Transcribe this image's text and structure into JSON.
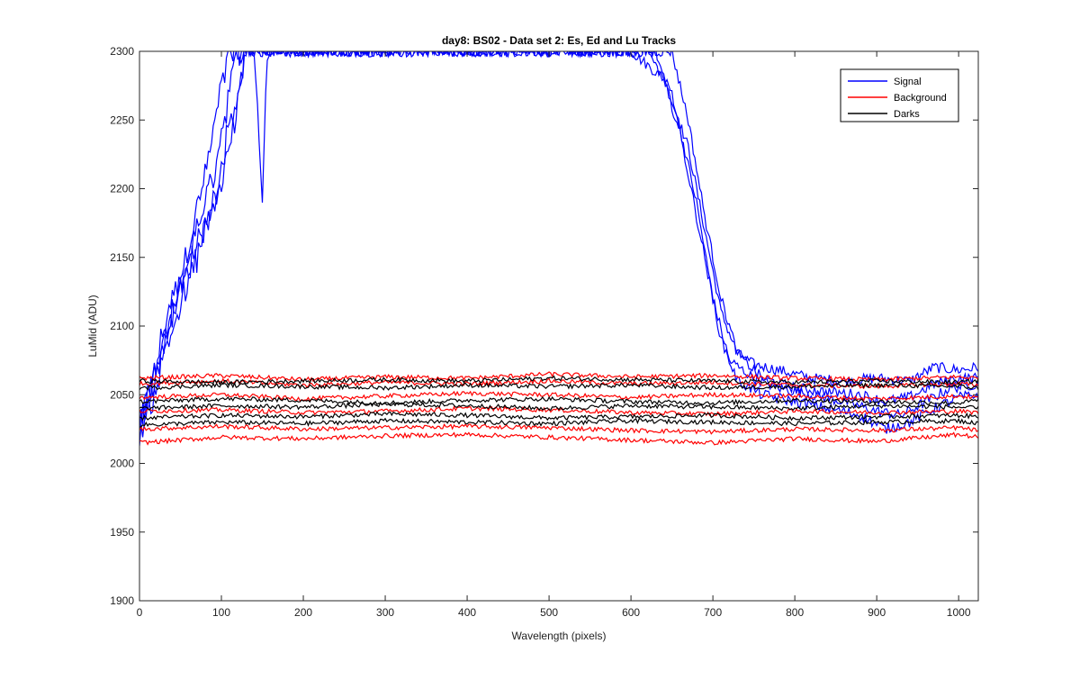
{
  "chart_data": {
    "type": "line",
    "title": "day8: BS02 - Data set 2: Es, Ed and Lu Tracks",
    "xlabel": "Wavelength (pixels)",
    "ylabel": "LuMid (ADU)",
    "xlim": [
      0,
      1024
    ],
    "ylim": [
      1900,
      2300
    ],
    "xticks": [
      0,
      100,
      200,
      300,
      400,
      500,
      600,
      700,
      800,
      900,
      1000
    ],
    "yticks": [
      1900,
      1950,
      2000,
      2050,
      2100,
      2150,
      2200,
      2250,
      2300
    ],
    "grid": false,
    "legend_position": "top-right",
    "legend": [
      {
        "label": "Signal",
        "color": "#0000ff"
      },
      {
        "label": "Background",
        "color": "#ff0000"
      },
      {
        "label": "Darks",
        "color": "#000000"
      }
    ],
    "series": [
      {
        "group": "Signal",
        "color": "#0000ff",
        "points": [
          [
            0,
            2027
          ],
          [
            10,
            2040
          ],
          [
            20,
            2070
          ],
          [
            30,
            2100
          ],
          [
            40,
            2120
          ],
          [
            50,
            2135
          ],
          [
            60,
            2160
          ],
          [
            70,
            2185
          ],
          [
            80,
            2210
          ],
          [
            90,
            2240
          ],
          [
            100,
            2275
          ],
          [
            110,
            2300
          ],
          [
            600,
            2300
          ],
          [
            640,
            2280
          ],
          [
            670,
            2230
          ],
          [
            690,
            2170
          ],
          [
            710,
            2110
          ],
          [
            730,
            2080
          ],
          [
            750,
            2072
          ],
          [
            780,
            2068
          ],
          [
            820,
            2062
          ],
          [
            860,
            2060
          ],
          [
            900,
            2062
          ],
          [
            940,
            2060
          ],
          [
            970,
            2070
          ],
          [
            1000,
            2068
          ],
          [
            1024,
            2070
          ]
        ]
      },
      {
        "group": "Signal",
        "color": "#0000ff",
        "points": [
          [
            0,
            2030
          ],
          [
            10,
            2045
          ],
          [
            20,
            2060
          ],
          [
            30,
            2085
          ],
          [
            40,
            2105
          ],
          [
            50,
            2130
          ],
          [
            60,
            2150
          ],
          [
            70,
            2170
          ],
          [
            80,
            2190
          ],
          [
            90,
            2210
          ],
          [
            100,
            2240
          ],
          [
            110,
            2270
          ],
          [
            120,
            2300
          ],
          [
            140,
            2300
          ],
          [
            145,
            2250
          ],
          [
            150,
            2190
          ],
          [
            155,
            2290
          ],
          [
            160,
            2300
          ],
          [
            620,
            2300
          ],
          [
            650,
            2270
          ],
          [
            680,
            2190
          ],
          [
            700,
            2120
          ],
          [
            720,
            2075
          ],
          [
            750,
            2062
          ],
          [
            780,
            2055
          ],
          [
            820,
            2050
          ],
          [
            860,
            2045
          ],
          [
            900,
            2038
          ],
          [
            930,
            2035
          ],
          [
            960,
            2045
          ],
          [
            990,
            2055
          ],
          [
            1024,
            2058
          ]
        ]
      },
      {
        "group": "Signal",
        "color": "#0000ff",
        "points": [
          [
            0,
            2025
          ],
          [
            10,
            2050
          ],
          [
            20,
            2070
          ],
          [
            30,
            2090
          ],
          [
            40,
            2110
          ],
          [
            50,
            2125
          ],
          [
            60,
            2140
          ],
          [
            70,
            2160
          ],
          [
            80,
            2175
          ],
          [
            90,
            2190
          ],
          [
            100,
            2215
          ],
          [
            110,
            2250
          ],
          [
            120,
            2270
          ],
          [
            130,
            2300
          ],
          [
            650,
            2300
          ],
          [
            670,
            2250
          ],
          [
            690,
            2180
          ],
          [
            710,
            2120
          ],
          [
            730,
            2080
          ],
          [
            760,
            2062
          ],
          [
            800,
            2055
          ],
          [
            840,
            2052
          ],
          [
            880,
            2050
          ],
          [
            910,
            2045
          ],
          [
            940,
            2048
          ],
          [
            970,
            2058
          ],
          [
            1000,
            2062
          ],
          [
            1024,
            2062
          ]
        ]
      },
      {
        "group": "Signal",
        "color": "#0000ff",
        "points": [
          [
            0,
            2022
          ],
          [
            10,
            2035
          ],
          [
            20,
            2055
          ],
          [
            30,
            2080
          ],
          [
            40,
            2100
          ],
          [
            50,
            2115
          ],
          [
            60,
            2130
          ],
          [
            70,
            2150
          ],
          [
            80,
            2170
          ],
          [
            90,
            2185
          ],
          [
            100,
            2205
          ],
          [
            110,
            2230
          ],
          [
            120,
            2260
          ],
          [
            130,
            2300
          ],
          [
            630,
            2300
          ],
          [
            660,
            2240
          ],
          [
            690,
            2150
          ],
          [
            710,
            2090
          ],
          [
            730,
            2060
          ],
          [
            760,
            2050
          ],
          [
            800,
            2045
          ],
          [
            840,
            2040
          ],
          [
            880,
            2035
          ],
          [
            910,
            2025
          ],
          [
            940,
            2030
          ],
          [
            970,
            2040
          ],
          [
            1000,
            2048
          ],
          [
            1024,
            2050
          ]
        ]
      },
      {
        "group": "Background",
        "color": "#ff0000",
        "points": [
          [
            0,
            2062
          ],
          [
            100,
            2064
          ],
          [
            200,
            2061
          ],
          [
            300,
            2063
          ],
          [
            400,
            2062
          ],
          [
            500,
            2065
          ],
          [
            600,
            2063
          ],
          [
            700,
            2064
          ],
          [
            800,
            2062
          ],
          [
            900,
            2061
          ],
          [
            1000,
            2063
          ],
          [
            1024,
            2062
          ]
        ]
      },
      {
        "group": "Background",
        "color": "#ff0000",
        "points": [
          [
            0,
            2058
          ],
          [
            100,
            2060
          ],
          [
            200,
            2057
          ],
          [
            300,
            2059
          ],
          [
            400,
            2058
          ],
          [
            500,
            2060
          ],
          [
            600,
            2058
          ],
          [
            700,
            2059
          ],
          [
            800,
            2057
          ],
          [
            900,
            2056
          ],
          [
            1000,
            2058
          ],
          [
            1024,
            2057
          ]
        ]
      },
      {
        "group": "Background",
        "color": "#ff0000",
        "points": [
          [
            0,
            2048
          ],
          [
            100,
            2050
          ],
          [
            200,
            2047
          ],
          [
            300,
            2049
          ],
          [
            400,
            2051
          ],
          [
            500,
            2050
          ],
          [
            600,
            2048
          ],
          [
            700,
            2050
          ],
          [
            800,
            2049
          ],
          [
            900,
            2047
          ],
          [
            1000,
            2049
          ],
          [
            1024,
            2048
          ]
        ]
      },
      {
        "group": "Background",
        "color": "#ff0000",
        "points": [
          [
            0,
            2038
          ],
          [
            100,
            2039
          ],
          [
            200,
            2037
          ],
          [
            300,
            2038
          ],
          [
            400,
            2040
          ],
          [
            500,
            2039
          ],
          [
            600,
            2037
          ],
          [
            700,
            2036
          ],
          [
            800,
            2038
          ],
          [
            900,
            2037
          ],
          [
            1000,
            2038
          ],
          [
            1024,
            2037
          ]
        ]
      },
      {
        "group": "Background",
        "color": "#ff0000",
        "points": [
          [
            0,
            2025
          ],
          [
            100,
            2027
          ],
          [
            200,
            2025
          ],
          [
            300,
            2026
          ],
          [
            400,
            2027
          ],
          [
            500,
            2026
          ],
          [
            600,
            2024
          ],
          [
            700,
            2023
          ],
          [
            800,
            2025
          ],
          [
            900,
            2024
          ],
          [
            1000,
            2026
          ],
          [
            1024,
            2024
          ]
        ]
      },
      {
        "group": "Background",
        "color": "#ff0000",
        "points": [
          [
            0,
            2015
          ],
          [
            100,
            2019
          ],
          [
            200,
            2018
          ],
          [
            300,
            2020
          ],
          [
            400,
            2021
          ],
          [
            500,
            2019
          ],
          [
            600,
            2017
          ],
          [
            700,
            2015
          ],
          [
            800,
            2018
          ],
          [
            900,
            2016
          ],
          [
            1000,
            2021
          ],
          [
            1024,
            2019
          ]
        ]
      },
      {
        "group": "Darks",
        "color": "#000000",
        "points": [
          [
            0,
            2060
          ],
          [
            100,
            2059
          ],
          [
            200,
            2060
          ],
          [
            300,
            2061
          ],
          [
            400,
            2060
          ],
          [
            500,
            2062
          ],
          [
            600,
            2061
          ],
          [
            700,
            2060
          ],
          [
            800,
            2059
          ],
          [
            900,
            2060
          ],
          [
            1000,
            2059
          ],
          [
            1024,
            2060
          ]
        ]
      },
      {
        "group": "Darks",
        "color": "#000000",
        "points": [
          [
            0,
            2055
          ],
          [
            100,
            2057
          ],
          [
            200,
            2056
          ],
          [
            300,
            2055
          ],
          [
            400,
            2057
          ],
          [
            500,
            2056
          ],
          [
            600,
            2057
          ],
          [
            700,
            2055
          ],
          [
            800,
            2056
          ],
          [
            900,
            2057
          ],
          [
            1000,
            2056
          ],
          [
            1024,
            2055
          ]
        ]
      },
      {
        "group": "Darks",
        "color": "#000000",
        "points": [
          [
            0,
            2045
          ],
          [
            100,
            2047
          ],
          [
            200,
            2046
          ],
          [
            300,
            2044
          ],
          [
            400,
            2046
          ],
          [
            500,
            2047
          ],
          [
            600,
            2045
          ],
          [
            700,
            2044
          ],
          [
            800,
            2046
          ],
          [
            900,
            2045
          ],
          [
            1000,
            2044
          ],
          [
            1024,
            2046
          ]
        ]
      },
      {
        "group": "Darks",
        "color": "#000000",
        "points": [
          [
            0,
            2040
          ],
          [
            100,
            2042
          ],
          [
            200,
            2041
          ],
          [
            300,
            2043
          ],
          [
            400,
            2042
          ],
          [
            500,
            2040
          ],
          [
            600,
            2042
          ],
          [
            700,
            2041
          ],
          [
            800,
            2040
          ],
          [
            900,
            2042
          ],
          [
            1000,
            2041
          ],
          [
            1024,
            2040
          ]
        ]
      },
      {
        "group": "Darks",
        "color": "#000000",
        "points": [
          [
            0,
            2033
          ],
          [
            100,
            2035
          ],
          [
            200,
            2034
          ],
          [
            300,
            2036
          ],
          [
            400,
            2035
          ],
          [
            500,
            2033
          ],
          [
            600,
            2034
          ],
          [
            700,
            2035
          ],
          [
            800,
            2033
          ],
          [
            900,
            2034
          ],
          [
            1000,
            2035
          ],
          [
            1024,
            2034
          ]
        ]
      },
      {
        "group": "Darks",
        "color": "#000000",
        "points": [
          [
            0,
            2028
          ],
          [
            100,
            2030
          ],
          [
            200,
            2029
          ],
          [
            300,
            2031
          ],
          [
            400,
            2030
          ],
          [
            500,
            2029
          ],
          [
            600,
            2031
          ],
          [
            700,
            2030
          ],
          [
            800,
            2029
          ],
          [
            900,
            2030
          ],
          [
            1000,
            2031
          ],
          [
            1024,
            2029
          ]
        ]
      }
    ]
  }
}
